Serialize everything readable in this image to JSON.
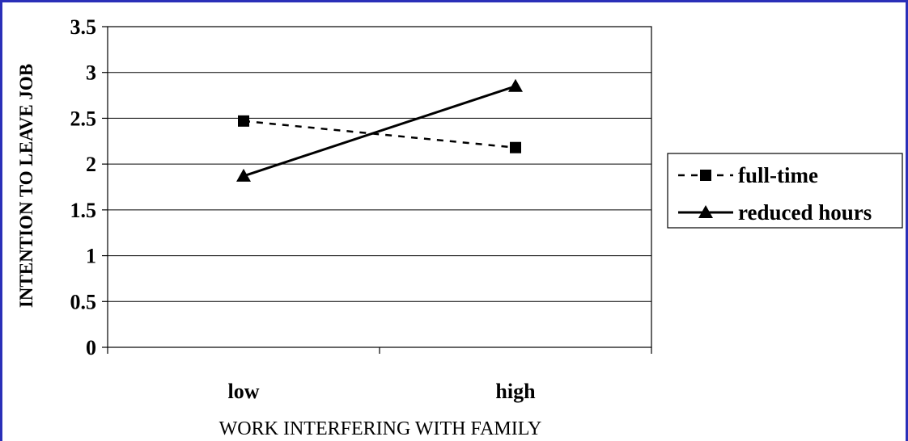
{
  "chart_data": {
    "type": "line",
    "categories": [
      "low",
      "high"
    ],
    "series": [
      {
        "name": "full-time",
        "values": [
          2.47,
          2.18
        ],
        "style": "dashed",
        "marker": "square"
      },
      {
        "name": "reduced hours",
        "values": [
          1.87,
          2.85
        ],
        "style": "solid",
        "marker": "triangle"
      }
    ],
    "xlabel": "WORK INTERFERING WITH FAMILY",
    "ylabel": "INTENTION TO LEAVE JOB",
    "ylim": [
      0,
      3.5
    ],
    "yticks": [
      "0",
      "0.5",
      "1",
      "1.5",
      "2",
      "2.5",
      "3",
      "3.5"
    ],
    "grid": true,
    "legend_position": "right",
    "colors": {
      "frame": "#2a2fb8",
      "lines": "#000000"
    }
  }
}
